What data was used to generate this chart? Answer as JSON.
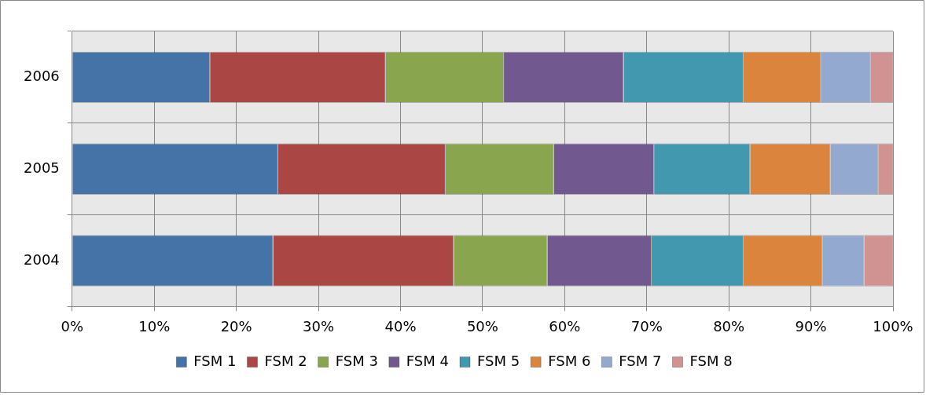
{
  "chart_data": {
    "type": "bar",
    "orientation": "horizontal",
    "stacked": true,
    "categories": [
      "2006",
      "2005",
      "2004"
    ],
    "series": [
      {
        "name": "FSM 1",
        "color": "#4572a7",
        "values": [
          16.8,
          25.1,
          24.5
        ]
      },
      {
        "name": "FSM 2",
        "color": "#aa4643",
        "values": [
          21.4,
          20.4,
          22.0
        ]
      },
      {
        "name": "FSM 3",
        "color": "#89a54e",
        "values": [
          14.4,
          13.2,
          11.4
        ]
      },
      {
        "name": "FSM 4",
        "color": "#71588f",
        "values": [
          14.6,
          12.2,
          12.7
        ]
      },
      {
        "name": "FSM 5",
        "color": "#4198af",
        "values": [
          14.6,
          11.7,
          11.2
        ]
      },
      {
        "name": "FSM 6",
        "color": "#db843d",
        "values": [
          9.4,
          9.8,
          9.6
        ]
      },
      {
        "name": "FSM 7",
        "color": "#93a9cf",
        "values": [
          6.1,
          5.8,
          5.1
        ]
      },
      {
        "name": "FSM 8",
        "color": "#d19392",
        "values": [
          2.7,
          1.8,
          3.5
        ]
      }
    ],
    "xlim": [
      0,
      100
    ],
    "xticks": [
      {
        "value": 0,
        "label": "0%"
      },
      {
        "value": 10,
        "label": "10%"
      },
      {
        "value": 20,
        "label": "20%"
      },
      {
        "value": 30,
        "label": "30%"
      },
      {
        "value": 40,
        "label": "40%"
      },
      {
        "value": 50,
        "label": "50%"
      },
      {
        "value": 60,
        "label": "60%"
      },
      {
        "value": 70,
        "label": "70%"
      },
      {
        "value": 80,
        "label": "80%"
      },
      {
        "value": 90,
        "label": "90%"
      },
      {
        "value": 100,
        "label": "100%"
      }
    ],
    "grid": true,
    "legend": "bottom"
  }
}
